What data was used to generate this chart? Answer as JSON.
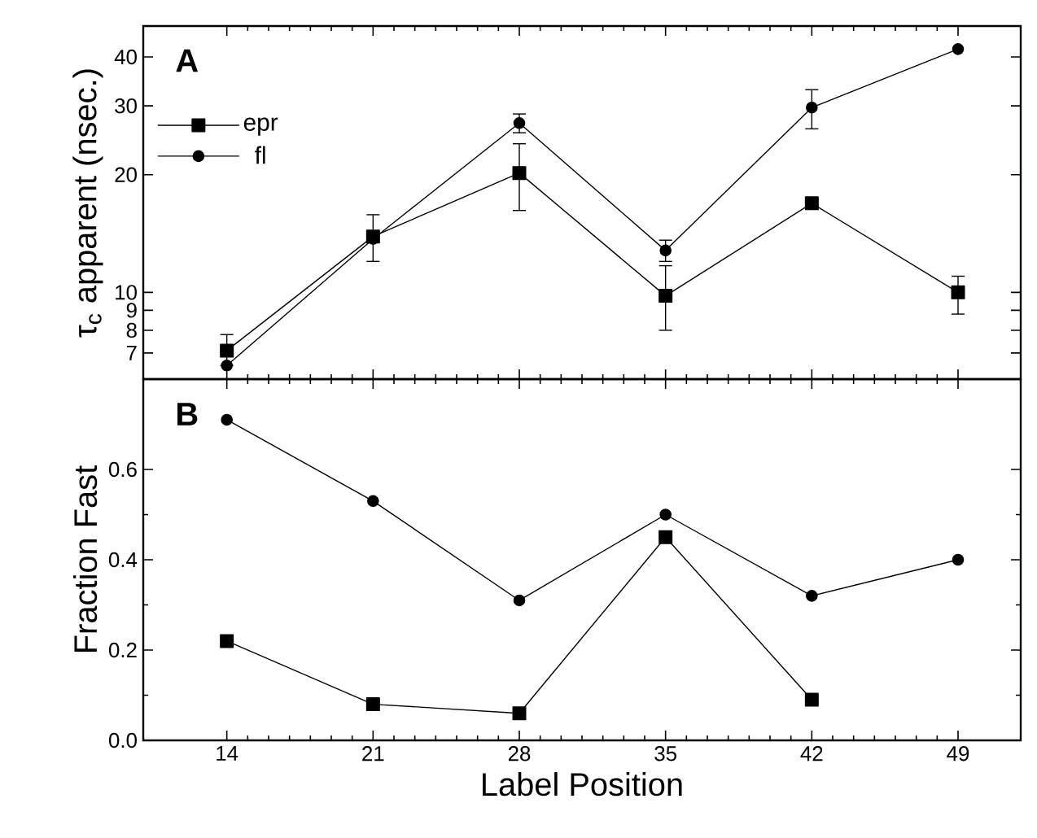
{
  "chart_data": [
    {
      "type": "line",
      "x": [
        14,
        21,
        28,
        35,
        42,
        49
      ],
      "ylabel": "τ$_{c}$ apparent (nsec.)",
      "log": true,
      "xlim": [
        10,
        52
      ],
      "ylim": [
        6,
        48
      ],
      "xticks": [
        14,
        21,
        28,
        35,
        42,
        49
      ],
      "yticks": [
        7,
        8,
        9,
        10,
        20,
        30,
        40
      ],
      "tick_labels": "y",
      "legend": "top left",
      "annotations": [
        "A"
      ],
      "series": [
        {
          "name": "epr",
          "color": "#000000",
          "marker": "square",
          "values": [
            7.1,
            13.9,
            20.2,
            9.8,
            16.9,
            10.0
          ],
          "errors": [
            [
              6.5,
              7.8
            ],
            [
              12.0,
              15.8
            ],
            [
              16.2,
              24.0
            ],
            [
              8.0,
              11.7
            ],
            null,
            [
              8.8,
              11.0
            ]
          ]
        },
        {
          "name": "fl",
          "color": "#000000",
          "marker": "circle",
          "values": [
            6.5,
            13.7,
            27.1,
            12.8,
            29.7,
            41.9
          ],
          "errors": [
            null,
            null,
            [
              25.6,
              28.6
            ],
            [
              12.0,
              13.6
            ],
            [
              26.2,
              33.0
            ],
            null
          ]
        }
      ]
    },
    {
      "type": "line",
      "x": [
        14,
        21,
        28,
        35,
        42,
        49
      ],
      "xlabel": "Label Position",
      "ylabel": "Fraction Fast",
      "xlim": [
        10,
        52
      ],
      "ylim": [
        0,
        0.8
      ],
      "xticks": [
        14,
        21,
        28,
        35,
        42,
        49
      ],
      "yticks": [
        {
          "value": 0,
          "label": "0.0"
        },
        0.2,
        0.4,
        0.6
      ],
      "annotations": [
        "B"
      ],
      "series": [
        {
          "color": "#000000",
          "marker": "square",
          "values": [
            0.22,
            0.08,
            0.06,
            0.45,
            0.09,
            null
          ]
        },
        {
          "color": "#000000",
          "marker": "circle",
          "values": [
            0.71,
            0.53,
            0.31,
            0.5,
            0.32,
            0.4
          ]
        }
      ]
    }
  ]
}
